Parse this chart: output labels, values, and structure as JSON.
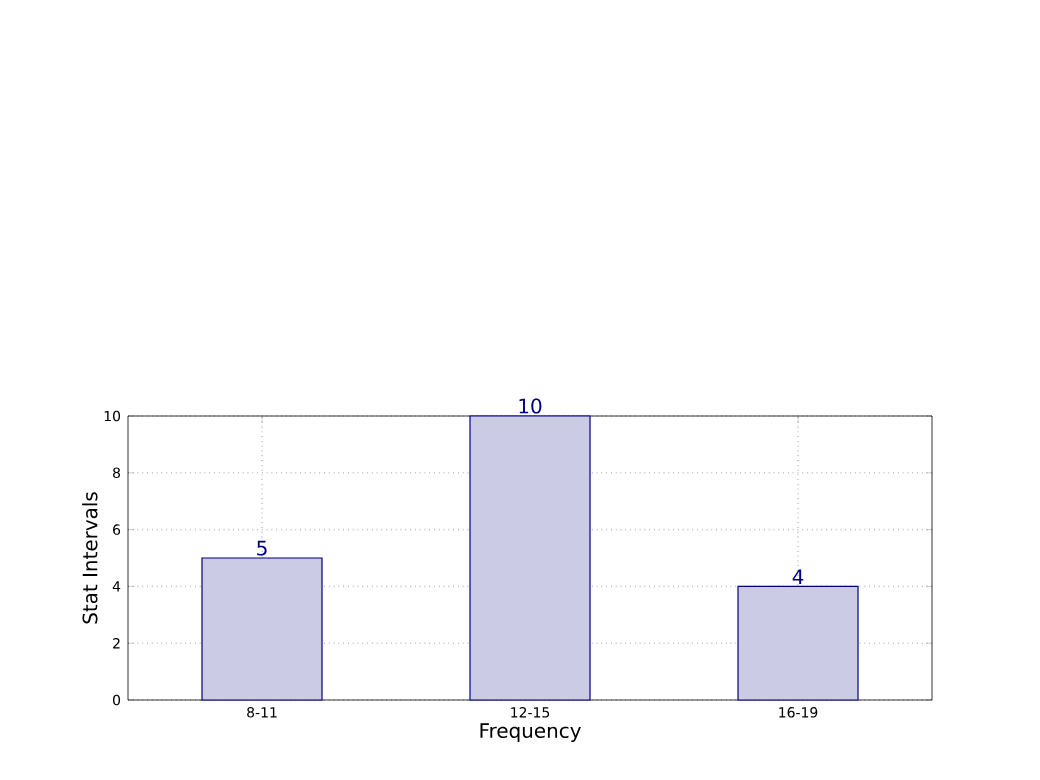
{
  "chart_data": {
    "type": "bar",
    "xlabel": "Frequency",
    "ylabel": "Stat Intervals",
    "categories": [
      "8-11",
      "12-15",
      "16-19"
    ],
    "values": [
      5,
      10,
      4
    ],
    "color": "#cbcbe6",
    "ylim": [
      0,
      10
    ],
    "yticks": [
      0,
      2,
      4,
      6,
      8,
      10
    ],
    "grid": true,
    "data_labels": true
  }
}
